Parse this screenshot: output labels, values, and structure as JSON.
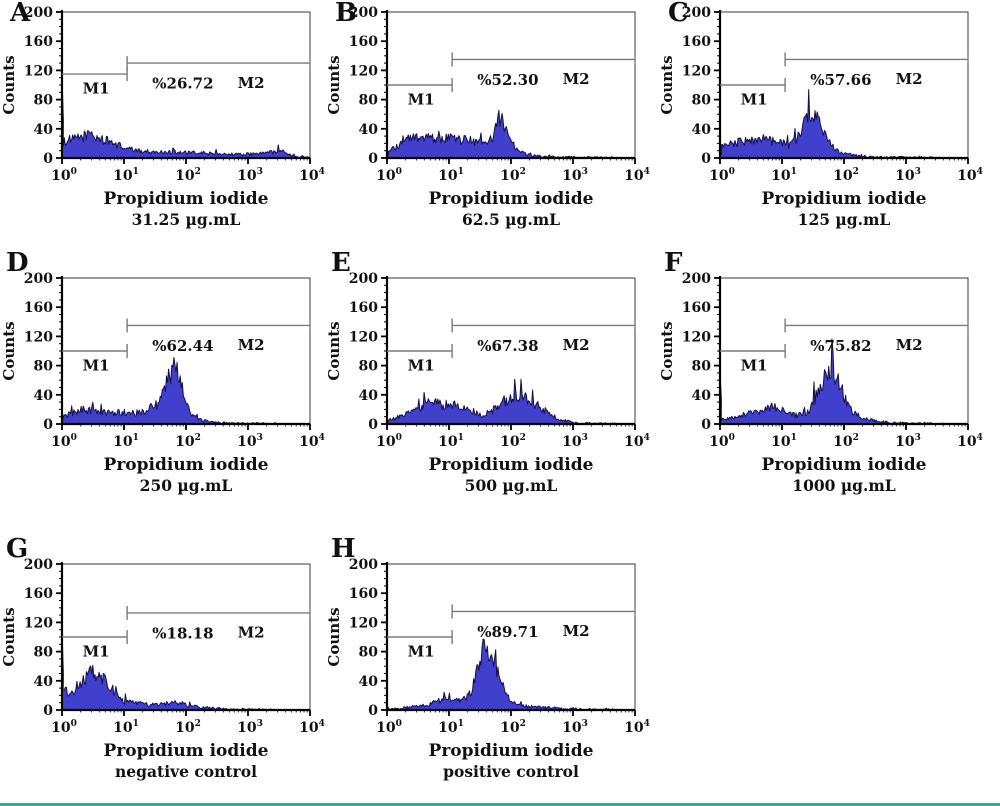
{
  "figure": {
    "ylabel": "Counts",
    "xlabel": "Propidium iodide",
    "m1_label": "M1",
    "m2_label": "M2",
    "x_tick_base": "10",
    "x_tick_exponents": [
      "0",
      "1",
      "2",
      "3",
      "4"
    ],
    "y_ticks": [
      "0",
      "40",
      "80",
      "120",
      "160",
      "200"
    ],
    "colors": {
      "hist_fill": "#4040cd",
      "hist_stroke": "#15123a",
      "gate_line": "#7a7a7a",
      "axis": "#000000",
      "frame": "#3a3a3a",
      "text": "#111111",
      "bottom_rule": "#38a89d"
    }
  },
  "chart_data": {
    "type": "area",
    "x_scale": "log10",
    "x_range": [
      1,
      10000
    ],
    "ylim": [
      0,
      200
    ],
    "grid": false,
    "panels": [
      {
        "letter": "A",
        "percent": "%26.72",
        "dose": "31.25 µg.mL",
        "m1_y": 115,
        "m2_y": 130,
        "spike": 112,
        "profile": [
          [
            0,
            22
          ],
          [
            0.2,
            26
          ],
          [
            0.35,
            30
          ],
          [
            0.45,
            34
          ],
          [
            0.55,
            28
          ],
          [
            0.7,
            24
          ],
          [
            0.85,
            20
          ],
          [
            1.0,
            14
          ],
          [
            1.2,
            10
          ],
          [
            1.5,
            8
          ],
          [
            1.8,
            8
          ],
          [
            2.0,
            7
          ],
          [
            2.2,
            7
          ],
          [
            2.5,
            6
          ],
          [
            2.8,
            5
          ],
          [
            3.0,
            5
          ],
          [
            3.2,
            6
          ],
          [
            3.45,
            9
          ],
          [
            3.55,
            8
          ],
          [
            3.7,
            4
          ],
          [
            3.85,
            2
          ],
          [
            4,
            1
          ]
        ]
      },
      {
        "letter": "B",
        "percent": "%52.30",
        "dose": "62.5 µg.mL",
        "m1_y": 100,
        "m2_y": 135,
        "spike": 10,
        "profile": [
          [
            0,
            8
          ],
          [
            0.15,
            14
          ],
          [
            0.3,
            24
          ],
          [
            0.4,
            28
          ],
          [
            0.5,
            27
          ],
          [
            0.6,
            30
          ],
          [
            0.7,
            26
          ],
          [
            0.8,
            28
          ],
          [
            0.9,
            25
          ],
          [
            1.0,
            30
          ],
          [
            1.1,
            26
          ],
          [
            1.2,
            24
          ],
          [
            1.3,
            26
          ],
          [
            1.4,
            22
          ],
          [
            1.5,
            20
          ],
          [
            1.6,
            17
          ],
          [
            1.7,
            28
          ],
          [
            1.78,
            45
          ],
          [
            1.83,
            52
          ],
          [
            1.88,
            48
          ],
          [
            1.95,
            35
          ],
          [
            2.05,
            18
          ],
          [
            2.15,
            8
          ],
          [
            2.3,
            4
          ],
          [
            2.5,
            2
          ],
          [
            2.8,
            1
          ],
          [
            3.2,
            1
          ],
          [
            4,
            0
          ]
        ]
      },
      {
        "letter": "C",
        "percent": "%57.66",
        "dose": "125 µg.mL",
        "m1_y": 100,
        "m2_y": 135,
        "spike": 12,
        "profile": [
          [
            0,
            14
          ],
          [
            0.15,
            18
          ],
          [
            0.3,
            22
          ],
          [
            0.4,
            24
          ],
          [
            0.5,
            25
          ],
          [
            0.6,
            22
          ],
          [
            0.7,
            26
          ],
          [
            0.8,
            24
          ],
          [
            0.9,
            22
          ],
          [
            1.0,
            21
          ],
          [
            1.1,
            18
          ],
          [
            1.2,
            22
          ],
          [
            1.3,
            35
          ],
          [
            1.4,
            55
          ],
          [
            1.47,
            62
          ],
          [
            1.55,
            55
          ],
          [
            1.65,
            38
          ],
          [
            1.75,
            22
          ],
          [
            1.85,
            12
          ],
          [
            2.0,
            6
          ],
          [
            2.2,
            3
          ],
          [
            2.5,
            1
          ],
          [
            3.0,
            1
          ],
          [
            4,
            0
          ]
        ]
      },
      {
        "letter": "D",
        "percent": "%62.44",
        "dose": "250 µg.mL",
        "m1_y": 100,
        "m2_y": 135,
        "spike": 18,
        "profile": [
          [
            0,
            10
          ],
          [
            0.2,
            16
          ],
          [
            0.35,
            20
          ],
          [
            0.5,
            18
          ],
          [
            0.6,
            16
          ],
          [
            0.8,
            15
          ],
          [
            1.0,
            16
          ],
          [
            1.2,
            15
          ],
          [
            1.35,
            17
          ],
          [
            1.45,
            30
          ],
          [
            1.55,
            25
          ],
          [
            1.65,
            45
          ],
          [
            1.72,
            65
          ],
          [
            1.78,
            76
          ],
          [
            1.85,
            70
          ],
          [
            1.95,
            45
          ],
          [
            2.05,
            18
          ],
          [
            2.15,
            8
          ],
          [
            2.3,
            4
          ],
          [
            2.5,
            2
          ],
          [
            2.8,
            1
          ],
          [
            4,
            0
          ]
        ]
      },
      {
        "letter": "E",
        "percent": "%67.38",
        "dose": "500 µg.mL",
        "m1_y": 100,
        "m2_y": 135,
        "spike": 6,
        "profile": [
          [
            0,
            4
          ],
          [
            0.2,
            10
          ],
          [
            0.35,
            16
          ],
          [
            0.5,
            22
          ],
          [
            0.65,
            28
          ],
          [
            0.75,
            30
          ],
          [
            0.85,
            28
          ],
          [
            0.95,
            26
          ],
          [
            1.05,
            28
          ],
          [
            1.15,
            26
          ],
          [
            1.25,
            22
          ],
          [
            1.35,
            20
          ],
          [
            1.45,
            16
          ],
          [
            1.55,
            12
          ],
          [
            1.65,
            14
          ],
          [
            1.75,
            22
          ],
          [
            1.85,
            30
          ],
          [
            1.95,
            34
          ],
          [
            2.05,
            38
          ],
          [
            2.15,
            36
          ],
          [
            2.25,
            34
          ],
          [
            2.35,
            30
          ],
          [
            2.45,
            24
          ],
          [
            2.55,
            18
          ],
          [
            2.7,
            10
          ],
          [
            2.85,
            5
          ],
          [
            3.0,
            2
          ],
          [
            3.2,
            1
          ],
          [
            4,
            0
          ]
        ]
      },
      {
        "letter": "F",
        "percent": "%75.82",
        "dose": "1000 µg.mL",
        "m1_y": 100,
        "m2_y": 135,
        "spike": 72,
        "profile": [
          [
            0,
            6
          ],
          [
            0.2,
            9
          ],
          [
            0.4,
            13
          ],
          [
            0.55,
            16
          ],
          [
            0.7,
            20
          ],
          [
            0.8,
            24
          ],
          [
            0.9,
            22
          ],
          [
            1.0,
            20
          ],
          [
            1.1,
            14
          ],
          [
            1.2,
            12
          ],
          [
            1.3,
            13
          ],
          [
            1.4,
            16
          ],
          [
            1.5,
            28
          ],
          [
            1.6,
            48
          ],
          [
            1.7,
            68
          ],
          [
            1.78,
            78
          ],
          [
            1.85,
            70
          ],
          [
            1.95,
            48
          ],
          [
            2.05,
            30
          ],
          [
            2.15,
            15
          ],
          [
            2.3,
            8
          ],
          [
            2.5,
            4
          ],
          [
            2.7,
            2
          ],
          [
            3.0,
            1
          ],
          [
            4,
            0
          ]
        ]
      },
      {
        "letter": "G",
        "percent": "%18.18",
        "dose": "negative control",
        "m1_y": 100,
        "m2_y": 133,
        "spike": 108,
        "profile": [
          [
            0,
            26
          ],
          [
            0.1,
            24
          ],
          [
            0.2,
            28
          ],
          [
            0.3,
            36
          ],
          [
            0.4,
            44
          ],
          [
            0.5,
            55
          ],
          [
            0.55,
            50
          ],
          [
            0.6,
            48
          ],
          [
            0.7,
            42
          ],
          [
            0.8,
            30
          ],
          [
            0.9,
            18
          ],
          [
            1.0,
            12
          ],
          [
            1.1,
            10
          ],
          [
            1.25,
            8
          ],
          [
            1.4,
            7
          ],
          [
            1.55,
            7
          ],
          [
            1.7,
            9
          ],
          [
            1.8,
            13
          ],
          [
            1.9,
            8
          ],
          [
            2.05,
            6
          ],
          [
            2.2,
            4
          ],
          [
            2.4,
            3
          ],
          [
            2.6,
            2
          ],
          [
            2.8,
            1
          ],
          [
            4,
            0
          ]
        ]
      },
      {
        "letter": "H",
        "percent": "%89.71",
        "dose": "positive control",
        "m1_y": 100,
        "m2_y": 135,
        "spike": 2,
        "profile": [
          [
            0,
            1
          ],
          [
            0.3,
            3
          ],
          [
            0.5,
            5
          ],
          [
            0.7,
            8
          ],
          [
            0.85,
            13
          ],
          [
            0.95,
            15
          ],
          [
            1.05,
            12
          ],
          [
            1.15,
            13
          ],
          [
            1.25,
            16
          ],
          [
            1.35,
            24
          ],
          [
            1.42,
            40
          ],
          [
            1.48,
            60
          ],
          [
            1.53,
            78
          ],
          [
            1.58,
            86
          ],
          [
            1.63,
            82
          ],
          [
            1.7,
            74
          ],
          [
            1.78,
            55
          ],
          [
            1.85,
            38
          ],
          [
            1.92,
            24
          ],
          [
            2.0,
            14
          ],
          [
            2.1,
            8
          ],
          [
            2.25,
            5
          ],
          [
            2.4,
            4
          ],
          [
            2.6,
            3
          ],
          [
            2.8,
            2
          ],
          [
            3.0,
            2
          ],
          [
            3.2,
            1
          ],
          [
            4,
            0
          ]
        ]
      }
    ]
  }
}
